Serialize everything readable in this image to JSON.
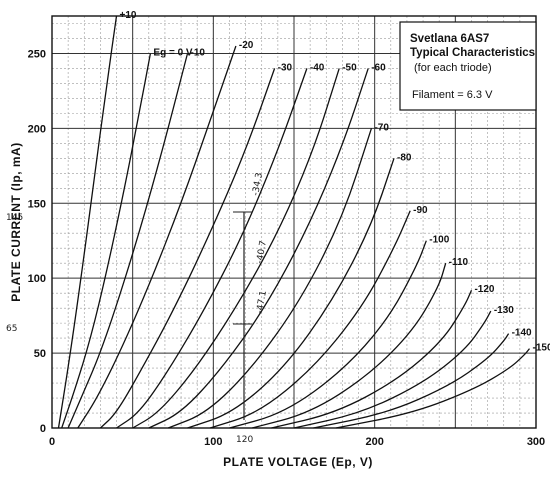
{
  "chart_data": {
    "type": "line",
    "title_box": {
      "line1": "Svetlana 6AS7",
      "line2": "Typical Characteristics",
      "line3": "(for each triode)",
      "filament": "Filament = 6.3 V"
    },
    "xlabel": "PLATE VOLTAGE (Ep, V)",
    "ylabel": "PLATE CURRENT (Ip, mA)",
    "xlim": [
      0,
      300
    ],
    "ylim": [
      0,
      275
    ],
    "x_ticks": [
      "0",
      "100",
      "200",
      "300"
    ],
    "y_ticks": [
      "0",
      "50",
      "100",
      "150",
      "200",
      "250"
    ],
    "grid": true,
    "legend": "curve labels at top end of each curve",
    "series": [
      {
        "name": "+10",
        "x": [
          4,
          10,
          18,
          26,
          34,
          40
        ],
        "y": [
          0,
          40,
          100,
          165,
          230,
          275
        ]
      },
      {
        "name": "Eg = 0 V",
        "x": [
          6,
          14,
          24,
          34,
          44,
          54,
          61
        ],
        "y": [
          0,
          25,
          60,
          105,
          155,
          210,
          250
        ]
      },
      {
        "name": "-10",
        "x": [
          10,
          18,
          30,
          44,
          58,
          72,
          84
        ],
        "y": [
          0,
          20,
          50,
          95,
          145,
          200,
          250
        ]
      },
      {
        "name": "-20",
        "x": [
          16,
          28,
          44,
          62,
          80,
          98,
          114
        ],
        "y": [
          0,
          20,
          55,
          100,
          150,
          205,
          255
        ]
      },
      {
        "name": "-30",
        "x": [
          30,
          40,
          56,
          76,
          98,
          120,
          138
        ],
        "y": [
          0,
          10,
          40,
          80,
          130,
          185,
          240
        ]
      },
      {
        "name": "-40",
        "x": [
          40,
          54,
          72,
          94,
          118,
          140,
          158
        ],
        "y": [
          0,
          10,
          38,
          78,
          128,
          185,
          240
        ]
      },
      {
        "name": "-50",
        "x": [
          50,
          66,
          88,
          114,
          140,
          162,
          178
        ],
        "y": [
          0,
          10,
          38,
          80,
          130,
          185,
          240
        ]
      },
      {
        "name": "-60",
        "x": [
          60,
          80,
          104,
          132,
          158,
          180,
          196
        ],
        "y": [
          0,
          10,
          38,
          80,
          132,
          188,
          240
        ]
      },
      {
        "name": "-70",
        "x": [
          72,
          96,
          124,
          154,
          180,
          198
        ],
        "y": [
          0,
          10,
          40,
          85,
          140,
          200
        ]
      },
      {
        "name": "-80",
        "x": [
          84,
          112,
          144,
          174,
          198,
          212
        ],
        "y": [
          0,
          10,
          40,
          85,
          135,
          180
        ]
      },
      {
        "name": "-90",
        "x": [
          98,
          128,
          162,
          192,
          212,
          222
        ],
        "y": [
          0,
          10,
          40,
          80,
          120,
          145
        ]
      },
      {
        "name": "-100",
        "x": [
          110,
          144,
          180,
          208,
          226,
          232
        ],
        "y": [
          0,
          10,
          38,
          72,
          108,
          125
        ]
      },
      {
        "name": "-110",
        "x": [
          124,
          160,
          196,
          224,
          240,
          244
        ],
        "y": [
          0,
          10,
          35,
          65,
          95,
          110
        ]
      },
      {
        "name": "-120",
        "x": [
          136,
          176,
          214,
          242,
          256,
          260
        ],
        "y": [
          0,
          10,
          32,
          58,
          82,
          92
        ]
      },
      {
        "name": "-130",
        "x": [
          150,
          192,
          230,
          256,
          268,
          272
        ],
        "y": [
          0,
          10,
          30,
          52,
          70,
          78
        ]
      },
      {
        "name": "-140",
        "x": [
          162,
          208,
          246,
          270,
          280,
          283
        ],
        "y": [
          0,
          10,
          28,
          46,
          58,
          63
        ]
      },
      {
        "name": "-150",
        "x": [
          176,
          224,
          262,
          284,
          293,
          296
        ],
        "y": [
          0,
          10,
          26,
          40,
          49,
          53
        ]
      }
    ],
    "annotations": {
      "x_mark": "120",
      "y_mark_high": "145",
      "y_mark_low": "65",
      "notes": [
        "-34.3",
        "-40.7",
        "-47.1"
      ]
    }
  }
}
